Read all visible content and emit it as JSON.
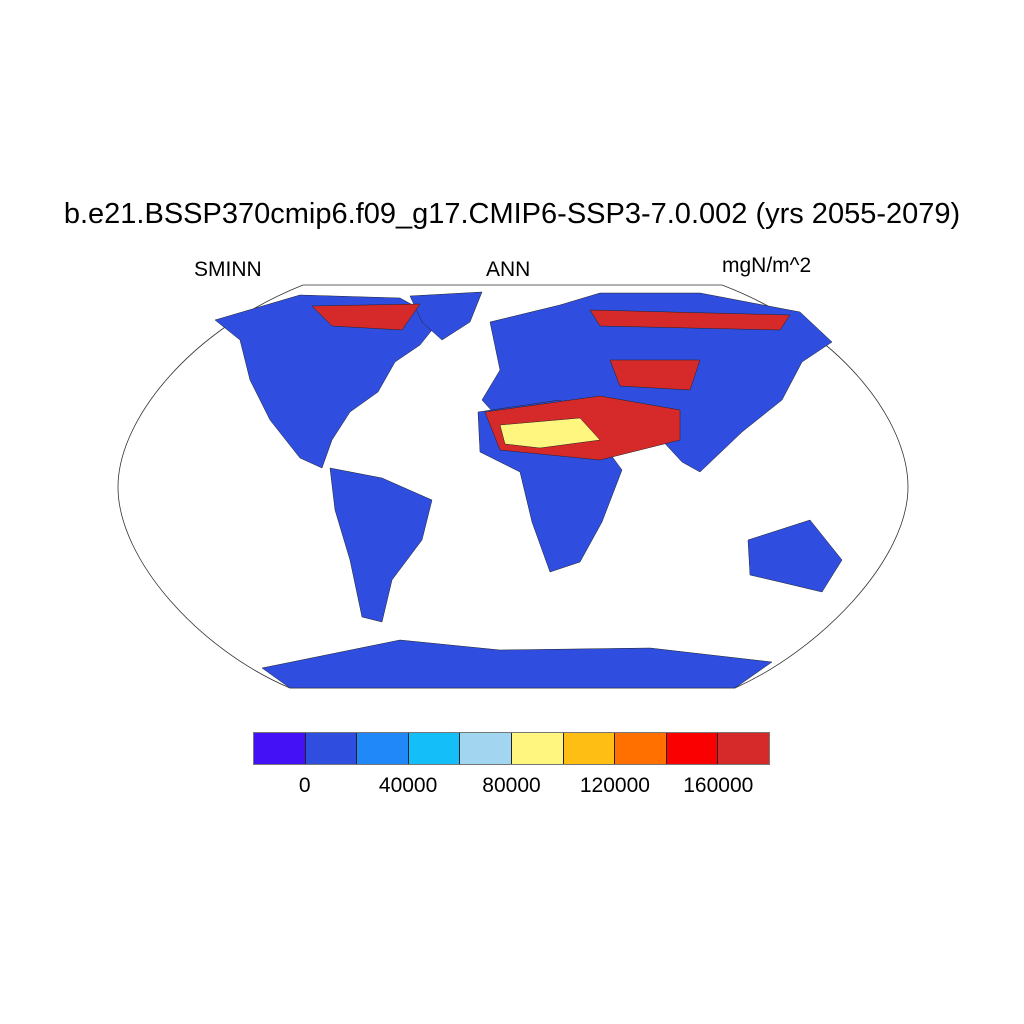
{
  "title": "b.e21.BSSP370cmip6.f09_g17.CMIP6-SSP3-7.0.002 (yrs 2055-2079)",
  "left_string": "SMINN",
  "center_string": "ANN",
  "right_string": "mgN/m^2",
  "colorbar": {
    "colors": [
      "#4410f5",
      "#2f4ee0",
      "#2088f8",
      "#14bef8",
      "#a2d6f0",
      "#fff680",
      "#ffbe14",
      "#ff7000",
      "#fa0000",
      "#d62a2a"
    ],
    "boundaries": [
      0,
      20000,
      40000,
      60000,
      80000,
      100000,
      120000,
      140000,
      160000
    ],
    "labels": [
      "0",
      "40000",
      "80000",
      "120000",
      "160000"
    ]
  },
  "map": {
    "land_color": "#2f4ee0",
    "high_color": "#d62a2a",
    "mid_color": "#fff680"
  }
}
